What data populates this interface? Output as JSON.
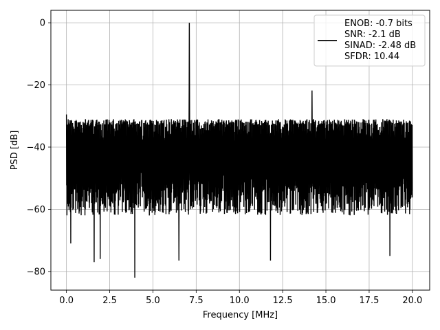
{
  "chart_data": {
    "type": "line",
    "xlabel": "Frequency [MHz]",
    "ylabel": "PSD [dB]",
    "xlim": [
      -0.9,
      21.0
    ],
    "ylim": [
      -86,
      4
    ],
    "xticks": [
      0.0,
      2.5,
      5.0,
      7.5,
      10.0,
      12.5,
      15.0,
      17.5,
      20.0
    ],
    "xtick_labels": [
      "0.0",
      "2.5",
      "5.0",
      "7.5",
      "10.0",
      "12.5",
      "15.0",
      "17.5",
      "20.0"
    ],
    "yticks": [
      0,
      -20,
      -40,
      -60,
      -80
    ],
    "ytick_labels": [
      "0",
      "−20",
      "−40",
      "−60",
      "−80"
    ],
    "grid": true,
    "legend_position": "top-right",
    "series": [
      {
        "name": "ENOB: -0.7 bits\nSNR: -2.1 dB\nSINAD: -2.48 dB\nSFDR: 10.44",
        "color": "#000000",
        "noise_floor": {
          "x_start": 0.0,
          "x_end": 20.0,
          "mean_db": -44,
          "upper_db": -32,
          "lower_db": -62,
          "points": 2000
        },
        "peaks": [
          {
            "x": 0.0,
            "y": -29.5
          },
          {
            "x": 7.1,
            "y": 0.0
          },
          {
            "x": 7.1,
            "y": -15.5
          },
          {
            "x": 14.2,
            "y": -21.8
          }
        ],
        "dips": [
          {
            "x": 0.25,
            "y": -71
          },
          {
            "x": 1.6,
            "y": -77
          },
          {
            "x": 1.95,
            "y": -76
          },
          {
            "x": 3.95,
            "y": -82
          },
          {
            "x": 6.5,
            "y": -76.5
          },
          {
            "x": 11.8,
            "y": -76.5
          },
          {
            "x": 18.7,
            "y": -75
          }
        ]
      }
    ]
  },
  "legend": {
    "lines": [
      "ENOB: -0.7 bits",
      "SNR: -2.1 dB",
      "SINAD: -2.48 dB",
      "SFDR: 10.44"
    ]
  }
}
